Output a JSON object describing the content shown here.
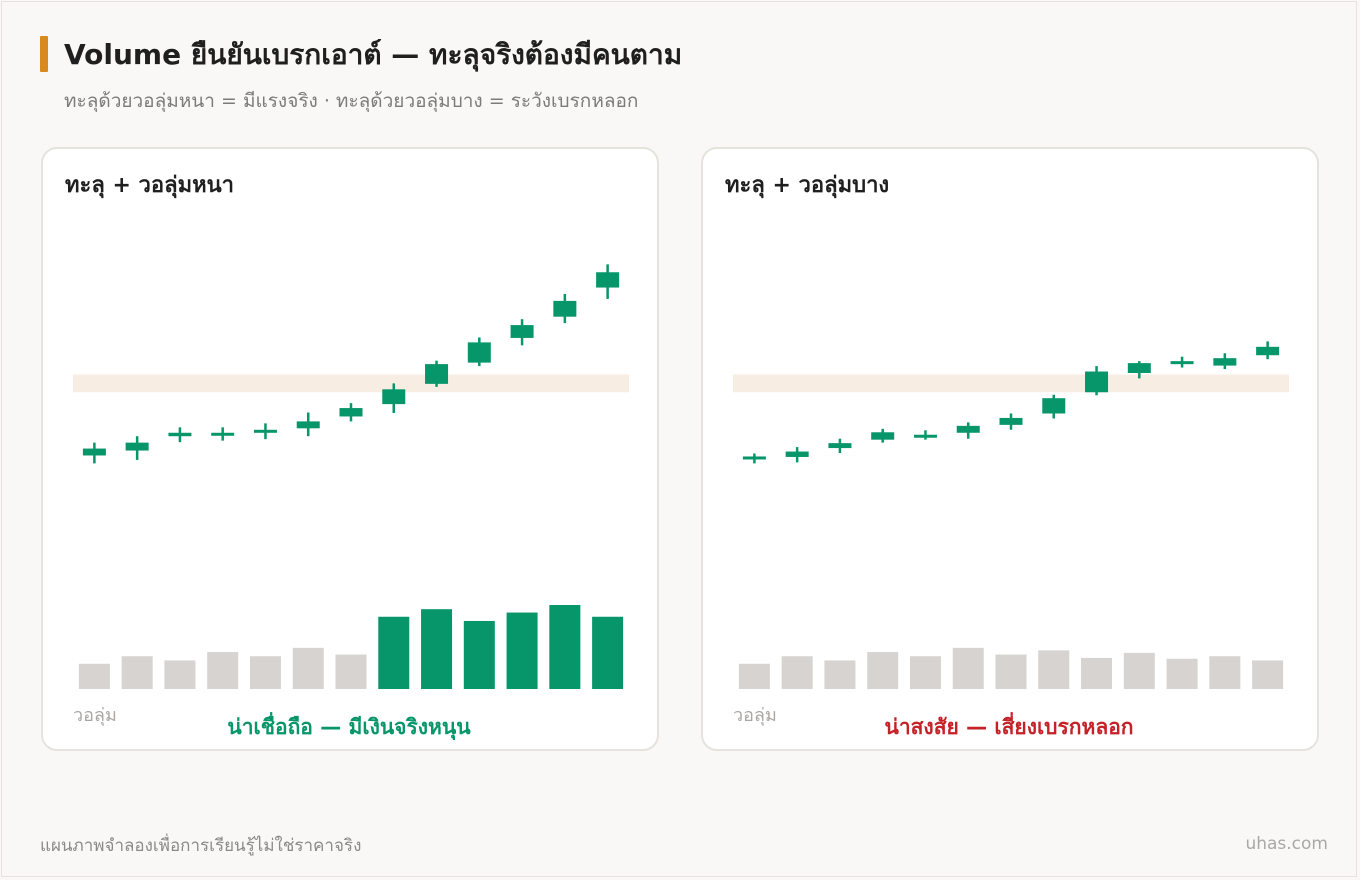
{
  "header": {
    "title": "Volume ยืนยันเบรกเอาต์ — ทะลุจริงต้องมีคนตาม",
    "subtitle": "ทะลุด้วยวอลุ่มหนา = มีแรงจริง · ทะลุด้วยวอลุ่มบาง = ระวังเบรกหลอก"
  },
  "footer": {
    "disclaimer": "แผนภาพจำลองเพื่อการเรียนรู้ไม่ใช่ราคาจริง",
    "brand": "uhas.com"
  },
  "colors": {
    "up": "#079669",
    "down": "#d6282e",
    "volume_normal": "#d6d3d1",
    "volume_strong": "#079669",
    "resistance_zone": "#f8ede2",
    "accent": "#d98a1e",
    "verdict_good": "#079669",
    "verdict_bad": "#c42228"
  },
  "chart_data": [
    {
      "type": "candlestick",
      "title": "ทะลุ + วอลุ่มหนา",
      "volume_label": "วอลุ่ม",
      "verdict": "น่าเชื่อถือ — มีเงินจริงหนุน",
      "verdict_tone": "good",
      "resistance_zone": [
        0.985,
        1.165
      ],
      "y_range": [
        -0.46,
        2.0
      ],
      "candles": [
        {
          "open": 0.345,
          "close": 0.415,
          "high": 0.475,
          "low": 0.265
        },
        {
          "open": 0.395,
          "close": 0.475,
          "high": 0.54,
          "low": 0.3
        },
        {
          "open": 0.54,
          "close": 0.575,
          "high": 0.63,
          "low": 0.48
        },
        {
          "open": 0.575,
          "close": 0.575,
          "high": 0.63,
          "low": 0.495
        },
        {
          "open": 0.58,
          "close": 0.605,
          "high": 0.67,
          "low": 0.51
        },
        {
          "open": 0.62,
          "close": 0.69,
          "high": 0.78,
          "low": 0.54
        },
        {
          "open": 0.74,
          "close": 0.825,
          "high": 0.875,
          "low": 0.69
        },
        {
          "open": 0.865,
          "close": 1.015,
          "high": 1.075,
          "low": 0.775
        },
        {
          "open": 1.07,
          "close": 1.27,
          "high": 1.305,
          "low": 1.04
        },
        {
          "open": 1.285,
          "close": 1.49,
          "high": 1.54,
          "low": 1.25
        },
        {
          "open": 1.535,
          "close": 1.665,
          "high": 1.725,
          "low": 1.46
        },
        {
          "open": 1.75,
          "close": 1.91,
          "high": 1.98,
          "low": 1.685
        },
        {
          "open": 2.045,
          "close": 2.2,
          "high": 2.28,
          "low": 1.93
        }
      ],
      "volume": [
        0.3,
        0.39,
        0.34,
        0.44,
        0.39,
        0.49,
        0.41,
        0.86,
        0.95,
        0.81,
        0.91,
        1.0,
        0.86
      ],
      "volume_highlight": [
        false,
        false,
        false,
        false,
        false,
        false,
        false,
        true,
        true,
        true,
        true,
        true,
        true
      ]
    },
    {
      "type": "candlestick",
      "title": "ทะลุ + วอลุ่มบาง",
      "volume_label": "วอลุ่ม",
      "verdict": "น่าสงสัย — เสี่ยงเบรกหลอก",
      "verdict_tone": "bad",
      "resistance_zone": [
        0.985,
        1.165
      ],
      "y_range": [
        -0.46,
        2.0
      ],
      "candles": [
        {
          "open": 0.305,
          "close": 0.335,
          "high": 0.365,
          "low": 0.265
        },
        {
          "open": 0.33,
          "close": 0.385,
          "high": 0.43,
          "low": 0.275
        },
        {
          "open": 0.42,
          "close": 0.47,
          "high": 0.515,
          "low": 0.37
        },
        {
          "open": 0.505,
          "close": 0.58,
          "high": 0.615,
          "low": 0.475
        },
        {
          "open": 0.54,
          "close": 0.555,
          "high": 0.6,
          "low": 0.505
        },
        {
          "open": 0.575,
          "close": 0.645,
          "high": 0.68,
          "low": 0.515
        },
        {
          "open": 0.655,
          "close": 0.725,
          "high": 0.77,
          "low": 0.605
        },
        {
          "open": 0.77,
          "close": 0.925,
          "high": 0.96,
          "low": 0.72
        },
        {
          "open": 0.985,
          "close": 1.195,
          "high": 1.25,
          "low": 0.955
        },
        {
          "open": 1.18,
          "close": 1.28,
          "high": 1.3,
          "low": 1.125
        },
        {
          "open": 1.3,
          "close": 1.3,
          "high": 1.345,
          "low": 1.235
        },
        {
          "open": 1.255,
          "close": 1.33,
          "high": 1.38,
          "low": 1.22
        },
        {
          "open": 1.36,
          "close": 1.445,
          "high": 1.5,
          "low": 1.32
        }
      ],
      "volume": [
        0.3,
        0.39,
        0.34,
        0.44,
        0.39,
        0.49,
        0.41,
        0.46,
        0.37,
        0.43,
        0.36,
        0.39,
        0.34
      ],
      "volume_highlight": [
        false,
        false,
        false,
        false,
        false,
        false,
        false,
        false,
        false,
        false,
        false,
        false,
        false
      ]
    }
  ]
}
